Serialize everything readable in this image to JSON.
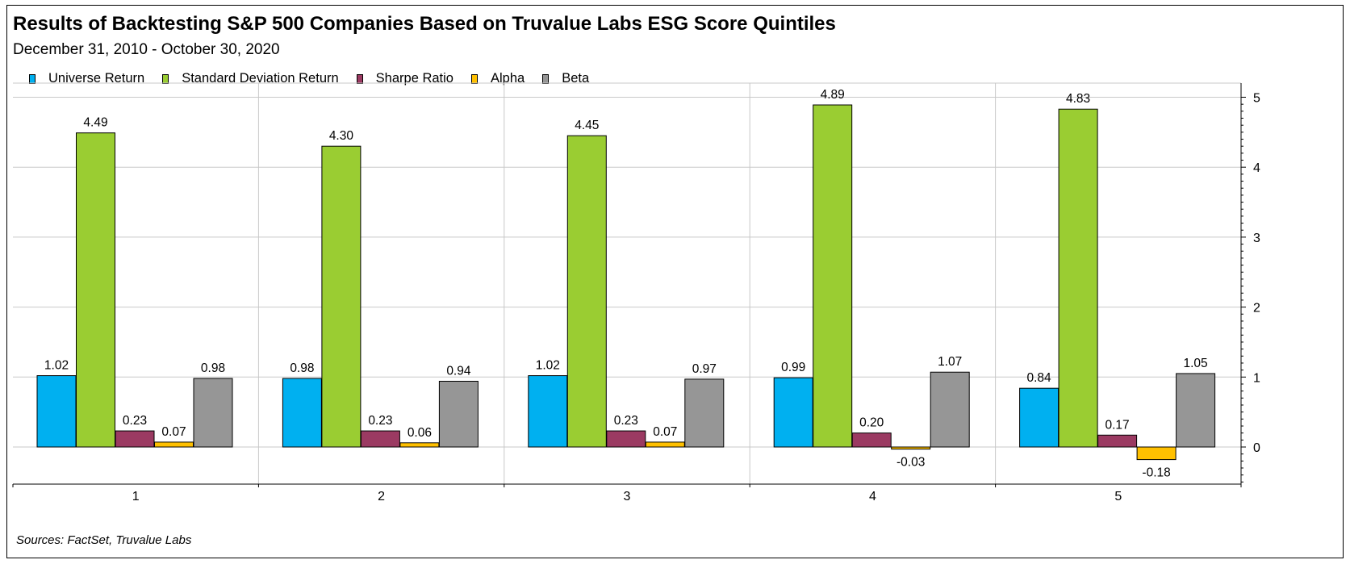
{
  "title": "Results of Backtesting S&P 500 Companies Based on Truvalue Labs ESG Score Quintiles",
  "subtitle": "December 31, 2010 - October 30, 2020",
  "source": "Sources: FactSet, Truvalue Labs",
  "chart_data": {
    "type": "bar",
    "categories": [
      "1",
      "2",
      "3",
      "4",
      "5"
    ],
    "series": [
      {
        "name": "Universe Return",
        "color": "#00b0f0",
        "values": [
          1.02,
          0.98,
          1.02,
          0.99,
          0.84
        ],
        "labels": [
          "1.02",
          "0.98",
          "1.02",
          "0.99",
          "0.84"
        ]
      },
      {
        "name": "Standard Deviation Return",
        "color": "#9acd32",
        "values": [
          4.49,
          4.3,
          4.45,
          4.89,
          4.83
        ],
        "labels": [
          "4.49",
          "4.30",
          "4.45",
          "4.89",
          "4.83"
        ]
      },
      {
        "name": "Sharpe Ratio",
        "color": "#9b3a62",
        "values": [
          0.23,
          0.23,
          0.23,
          0.2,
          0.17
        ],
        "labels": [
          "0.23",
          "0.23",
          "0.23",
          "0.20",
          "0.17"
        ]
      },
      {
        "name": "Alpha",
        "color": "#ffc000",
        "values": [
          0.07,
          0.06,
          0.07,
          -0.03,
          -0.18
        ],
        "labels": [
          "0.07",
          "0.06",
          "0.07",
          "-0.03",
          "-0.18"
        ]
      },
      {
        "name": "Beta",
        "color": "#969696",
        "values": [
          0.98,
          0.94,
          0.97,
          1.07,
          1.05
        ],
        "labels": [
          "0.98",
          "0.94",
          "0.97",
          "1.07",
          "1.05"
        ]
      }
    ],
    "y_ticks": [
      "0",
      "1",
      "2",
      "3",
      "4",
      "5"
    ],
    "ylim": [
      -0.5,
      5.05
    ],
    "grid": true,
    "legend": "top-left",
    "y_axis_side": "right"
  }
}
